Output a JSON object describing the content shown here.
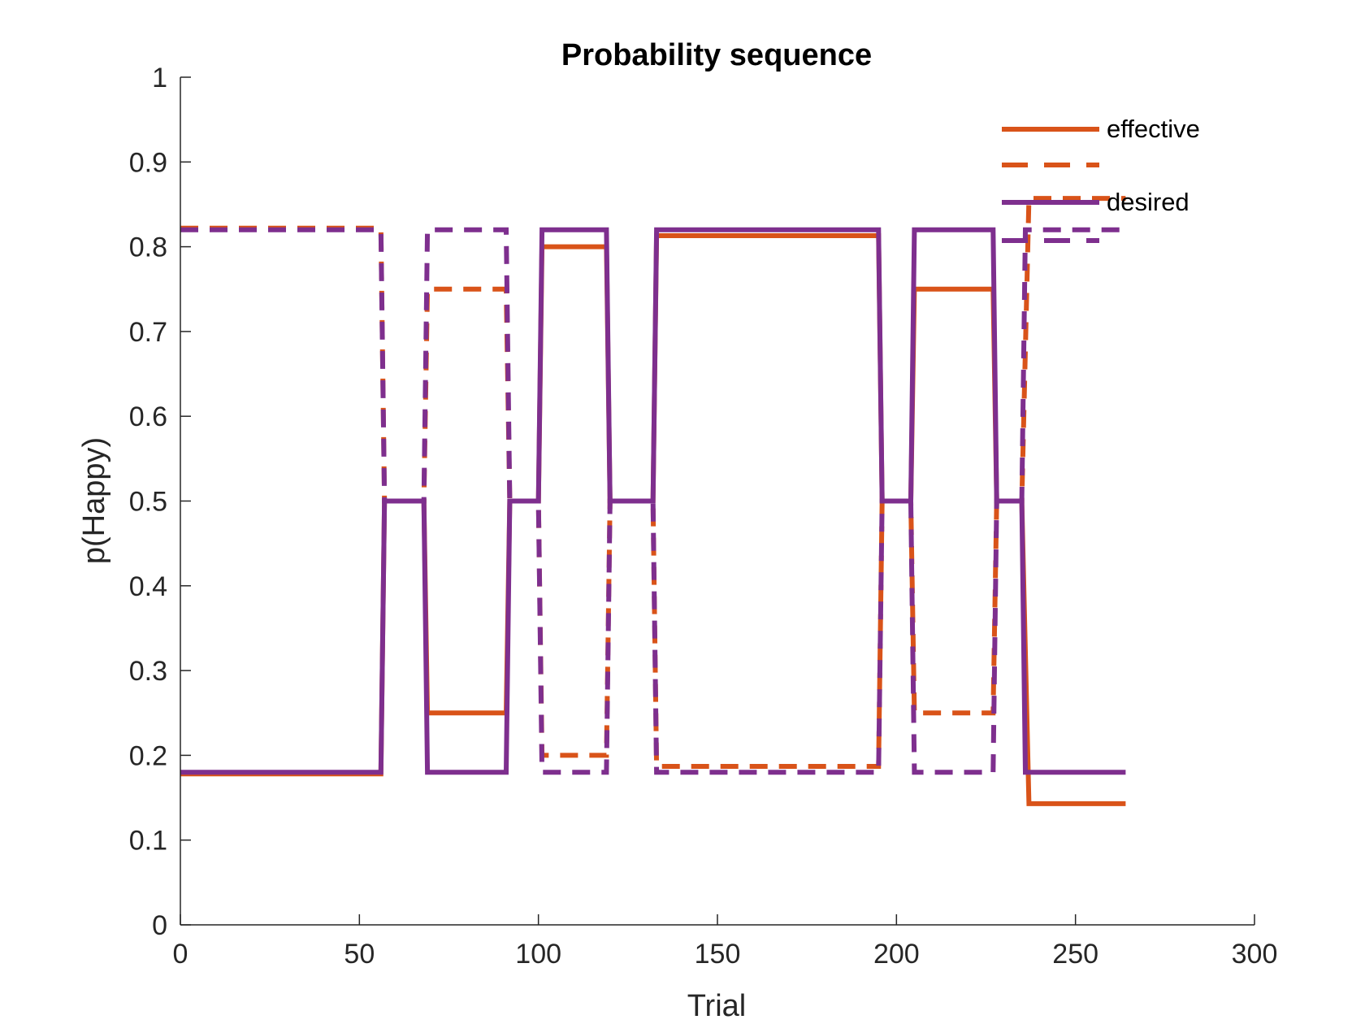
{
  "chart_data": {
    "type": "line",
    "title": "Probability sequence",
    "xlabel": "Trial",
    "ylabel": "p(Happy)",
    "xlim": [
      0,
      300
    ],
    "ylim": [
      0,
      1
    ],
    "xticks": [
      0,
      50,
      100,
      150,
      200,
      250,
      300
    ],
    "yticks": [
      0,
      0.1,
      0.2,
      0.3,
      0.4,
      0.5,
      0.6,
      0.7,
      0.8,
      0.9,
      1
    ],
    "ytick_labels": [
      "0",
      "0.1",
      "0.2",
      "0.3",
      "0.4",
      "0.5",
      "0.6",
      "0.7",
      "0.8",
      "0.9",
      "1"
    ],
    "grid": false,
    "legend_position": "top-right",
    "legend_entries": [
      "effective",
      "",
      "desired",
      ""
    ],
    "series": [
      {
        "name": "effective",
        "style": "solid",
        "color": "#D95319",
        "points": [
          [
            0,
            0.178
          ],
          [
            56,
            0.178
          ],
          [
            57,
            0.5
          ],
          [
            68,
            0.5
          ],
          [
            69,
            0.25
          ],
          [
            91,
            0.25
          ],
          [
            92,
            0.5
          ],
          [
            100,
            0.5
          ],
          [
            101,
            0.8
          ],
          [
            119,
            0.8
          ],
          [
            120,
            0.5
          ],
          [
            132,
            0.5
          ],
          [
            133,
            0.813
          ],
          [
            195,
            0.813
          ],
          [
            196,
            0.5
          ],
          [
            204,
            0.5
          ],
          [
            205,
            0.75
          ],
          [
            227,
            0.75
          ],
          [
            228,
            0.5
          ],
          [
            235,
            0.5
          ],
          [
            237,
            0.143
          ],
          [
            264,
            0.143
          ]
        ]
      },
      {
        "name": "",
        "style": "dashed",
        "color": "#D95319",
        "points": [
          [
            0,
            0.822
          ],
          [
            56,
            0.822
          ],
          [
            57,
            0.5
          ],
          [
            68,
            0.5
          ],
          [
            69,
            0.75
          ],
          [
            91,
            0.75
          ],
          [
            92,
            0.5
          ],
          [
            100,
            0.5
          ],
          [
            101,
            0.2
          ],
          [
            119,
            0.2
          ],
          [
            120,
            0.5
          ],
          [
            132,
            0.5
          ],
          [
            133,
            0.187
          ],
          [
            195,
            0.187
          ],
          [
            196,
            0.5
          ],
          [
            204,
            0.5
          ],
          [
            205,
            0.25
          ],
          [
            227,
            0.25
          ],
          [
            228,
            0.5
          ],
          [
            235,
            0.5
          ],
          [
            237,
            0.857
          ],
          [
            264,
            0.857
          ]
        ]
      },
      {
        "name": "desired",
        "style": "solid",
        "color": "#7E2F8E",
        "points": [
          [
            0,
            0.18
          ],
          [
            56,
            0.18
          ],
          [
            57,
            0.5
          ],
          [
            68,
            0.5
          ],
          [
            69,
            0.18
          ],
          [
            91,
            0.18
          ],
          [
            92,
            0.5
          ],
          [
            100,
            0.5
          ],
          [
            101,
            0.82
          ],
          [
            119,
            0.82
          ],
          [
            120,
            0.5
          ],
          [
            132,
            0.5
          ],
          [
            133,
            0.82
          ],
          [
            195,
            0.82
          ],
          [
            196,
            0.5
          ],
          [
            204,
            0.5
          ],
          [
            205,
            0.82
          ],
          [
            227,
            0.82
          ],
          [
            228,
            0.5
          ],
          [
            235,
            0.5
          ],
          [
            236,
            0.18
          ],
          [
            264,
            0.18
          ]
        ]
      },
      {
        "name": "",
        "style": "dashed",
        "color": "#7E2F8E",
        "points": [
          [
            0,
            0.82
          ],
          [
            56,
            0.82
          ],
          [
            57,
            0.5
          ],
          [
            68,
            0.5
          ],
          [
            69,
            0.82
          ],
          [
            91,
            0.82
          ],
          [
            92,
            0.5
          ],
          [
            100,
            0.5
          ],
          [
            101,
            0.18
          ],
          [
            119,
            0.18
          ],
          [
            120,
            0.5
          ],
          [
            132,
            0.5
          ],
          [
            133,
            0.18
          ],
          [
            195,
            0.18
          ],
          [
            196,
            0.5
          ],
          [
            204,
            0.5
          ],
          [
            205,
            0.18
          ],
          [
            227,
            0.18
          ],
          [
            228,
            0.5
          ],
          [
            235,
            0.5
          ],
          [
            236,
            0.82
          ],
          [
            264,
            0.82
          ]
        ]
      }
    ]
  }
}
